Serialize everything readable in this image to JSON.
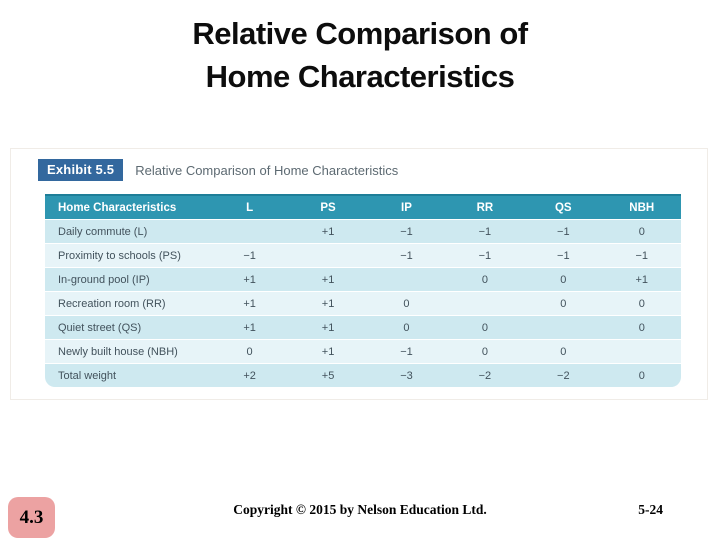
{
  "title": {
    "line1": "Relative Comparison of",
    "line2": "Home Characteristics"
  },
  "exhibit": {
    "label": "Exhibit 5.5",
    "caption": "Relative Comparison of Home Characteristics"
  },
  "table": {
    "headers": [
      "Home Characteristics",
      "L",
      "PS",
      "IP",
      "RR",
      "QS",
      "NBH"
    ],
    "rows": [
      {
        "label": "Daily commute (L)",
        "values": [
          "",
          "+1",
          "−1",
          "−1",
          "−1",
          "0"
        ]
      },
      {
        "label": "Proximity to schools (PS)",
        "values": [
          "−1",
          "",
          "−1",
          "−1",
          "−1",
          "−1"
        ]
      },
      {
        "label": "In-ground pool (IP)",
        "values": [
          "+1",
          "+1",
          "",
          "0",
          "0",
          "+1"
        ]
      },
      {
        "label": "Recreation room (RR)",
        "values": [
          "+1",
          "+1",
          "0",
          "",
          "0",
          "0"
        ]
      },
      {
        "label": "Quiet street (QS)",
        "values": [
          "+1",
          "+1",
          "0",
          "0",
          "",
          "0"
        ]
      },
      {
        "label": "Newly built house (NBH)",
        "values": [
          "0",
          "+1",
          "−1",
          "0",
          "0",
          ""
        ]
      },
      {
        "label": "Total weight",
        "values": [
          "+2",
          "+5",
          "−3",
          "−2",
          "−2",
          "0"
        ]
      }
    ]
  },
  "footer": {
    "section_number": "4.3",
    "copyright": "Copyright © 2015 by Nelson Education Ltd.",
    "page_number": "5-24"
  },
  "colors": {
    "table_header_teal": "#2E96B1",
    "table_header_top_border": "#1E7E98",
    "row_stripe_dark": "#CEE9F0",
    "row_stripe_light": "#E7F4F8",
    "exhibit_label_blue": "#33689E",
    "section_badge_pink": "#ECA2A2"
  }
}
